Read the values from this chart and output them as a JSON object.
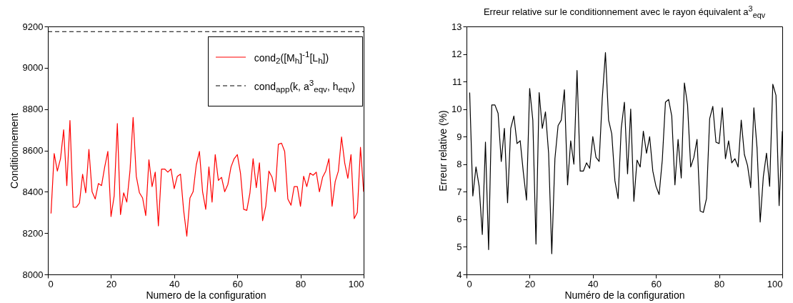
{
  "chart_data": [
    {
      "type": "line",
      "xlabel": "Numero de la configuration",
      "ylabel": "Conditionnement",
      "xlim": [
        0,
        100
      ],
      "xticks": [
        0,
        20,
        40,
        60,
        80,
        100
      ],
      "ylim": [
        8000,
        9200
      ],
      "yticks": [
        8000,
        8200,
        8400,
        8600,
        8800,
        9000,
        9200
      ],
      "legend": "top right",
      "x": [
        1,
        2,
        3,
        4,
        5,
        6,
        7,
        8,
        9,
        10,
        11,
        12,
        13,
        14,
        15,
        16,
        17,
        18,
        19,
        20,
        21,
        22,
        23,
        24,
        25,
        26,
        27,
        28,
        29,
        30,
        31,
        32,
        33,
        34,
        35,
        36,
        37,
        38,
        39,
        40,
        41,
        42,
        43,
        44,
        45,
        46,
        47,
        48,
        49,
        50,
        51,
        52,
        53,
        54,
        55,
        56,
        57,
        58,
        59,
        60,
        61,
        62,
        63,
        64,
        65,
        66,
        67,
        68,
        69,
        70,
        71,
        72,
        73,
        74,
        75,
        76,
        77,
        78,
        79,
        80,
        81,
        82,
        83,
        84,
        85,
        86,
        87,
        88,
        89,
        90,
        91,
        92,
        93,
        94,
        95,
        96,
        97,
        98,
        99,
        100
      ],
      "series": [
        {
          "name": "cond$_{2}$([M$_{h}$]$^{-1}$[L$_{h}$])",
          "color": "#ff0000",
          "values": [
            8295,
            8585,
            8500,
            8560,
            8700,
            8430,
            8745,
            8325,
            8325,
            8345,
            8485,
            8395,
            8605,
            8400,
            8365,
            8440,
            8430,
            8520,
            8595,
            8280,
            8380,
            8730,
            8290,
            8395,
            8350,
            8500,
            8760,
            8475,
            8395,
            8370,
            8285,
            8555,
            8425,
            8495,
            8235,
            8510,
            8510,
            8495,
            8510,
            8415,
            8475,
            8485,
            8310,
            8185,
            8370,
            8400,
            8530,
            8595,
            8400,
            8315,
            8520,
            8350,
            8580,
            8455,
            8470,
            8400,
            8435,
            8520,
            8560,
            8580,
            8490,
            8315,
            8310,
            8395,
            8560,
            8420,
            8540,
            8260,
            8330,
            8500,
            8470,
            8400,
            8630,
            8635,
            8595,
            8365,
            8335,
            8425,
            8425,
            8330,
            8475,
            8425,
            8490,
            8480,
            8495,
            8400,
            8470,
            8500,
            8560,
            8330,
            8450,
            8500,
            8665,
            8540,
            8465,
            8580,
            8270,
            8300,
            8615,
            8400
          ]
        },
        {
          "name": "cond$_{app}$(k, a$^{3}$$_{eqv}$, h$_{eqv}$)",
          "color": "#000000",
          "line_style": "dashed",
          "x": [
            0,
            100
          ],
          "values": [
            9175,
            9175
          ]
        }
      ]
    },
    {
      "type": "line",
      "title": "Erreur relative sur le conditionnement avec le rayon équivalent a$^{3}$$_{eqv}$",
      "xlabel": "Numéro de la configuration",
      "ylabel": "Erreur relative (%)",
      "xlim": [
        0,
        100
      ],
      "xticks": [
        0,
        20,
        40,
        60,
        80,
        100
      ],
      "ylim": [
        4,
        13
      ],
      "yticks": [
        4,
        5,
        6,
        7,
        8,
        9,
        10,
        11,
        12,
        13
      ],
      "x": [
        1,
        2,
        3,
        4,
        5,
        6,
        7,
        8,
        9,
        10,
        11,
        12,
        13,
        14,
        15,
        16,
        17,
        18,
        19,
        20,
        21,
        22,
        23,
        24,
        25,
        26,
        27,
        28,
        29,
        30,
        31,
        32,
        33,
        34,
        35,
        36,
        37,
        38,
        39,
        40,
        41,
        42,
        43,
        44,
        45,
        46,
        47,
        48,
        49,
        50,
        51,
        52,
        53,
        54,
        55,
        56,
        57,
        58,
        59,
        60,
        61,
        62,
        63,
        64,
        65,
        66,
        67,
        68,
        69,
        70,
        71,
        72,
        73,
        74,
        75,
        76,
        77,
        78,
        79,
        80,
        81,
        82,
        83,
        84,
        85,
        86,
        87,
        88,
        89,
        90,
        91,
        92,
        93,
        94,
        95,
        96,
        97,
        98,
        99,
        100
      ],
      "series": [
        {
          "color": "#000000",
          "values": [
            10.6,
            6.85,
            7.9,
            7.2,
            5.45,
            8.8,
            4.9,
            10.15,
            10.15,
            9.85,
            8.1,
            9.3,
            6.6,
            9.3,
            9.75,
            8.75,
            8.85,
            7.7,
            6.7,
            10.75,
            9.6,
            5.1,
            10.6,
            9.3,
            9.9,
            8.4,
            4.75,
            8.2,
            9.4,
            9.6,
            10.7,
            7.25,
            8.85,
            8.0,
            11.4,
            7.75,
            7.75,
            8.05,
            7.85,
            9.0,
            8.25,
            8.1,
            10.4,
            12.05,
            9.6,
            9.1,
            7.4,
            6.75,
            9.3,
            10.25,
            7.65,
            10.0,
            6.65,
            8.15,
            7.9,
            9.2,
            8.4,
            9.0,
            7.75,
            7.2,
            6.9,
            8.15,
            10.25,
            10.35,
            9.75,
            7.25,
            8.9,
            7.5,
            10.95,
            10.15,
            7.9,
            8.25,
            8.9,
            6.3,
            6.25,
            6.75,
            9.65,
            10.1,
            8.8,
            8.75,
            10.05,
            8.2,
            8.85,
            8.05,
            8.2,
            7.9,
            9.6,
            8.35,
            7.95,
            7.15,
            10.05,
            8.6,
            5.9,
            7.55,
            8.4,
            7.2,
            10.9,
            10.5,
            6.5,
            9.2
          ]
        }
      ]
    }
  ]
}
